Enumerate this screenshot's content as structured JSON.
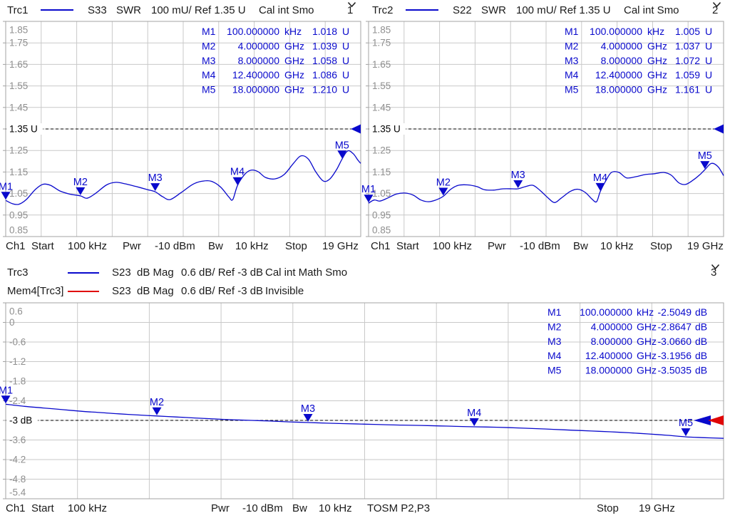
{
  "colors": {
    "trace_blue": "#0909cc",
    "mem_red": "#e00505",
    "grid": "#c9c9c9",
    "border": "#a3a3a3",
    "axis_label": "#8f8f8f",
    "ref_black": "#000000",
    "text": "#1b1b1b"
  },
  "traces_headers": [
    {
      "label": "Trc1",
      "meas": "S33",
      "format": "SWR",
      "scale": "100 mU/ Ref 1.35 U",
      "flags": "Cal int Smo",
      "channel": "1"
    },
    {
      "label": "Trc2",
      "meas": "S22",
      "format": "SWR",
      "scale": "100 mU/ Ref 1.35 U",
      "flags": "Cal int Smo",
      "channel": "2"
    },
    {
      "label": "Trc3",
      "meas": "S23",
      "format": "dB Mag",
      "scale": "0.6 dB/ Ref -3 dB",
      "flags": "Cal int Math Smo",
      "channel": "3"
    },
    {
      "label": "Mem4[Trc3]",
      "meas": "S23",
      "format": "dB Mag",
      "scale": "0.6 dB/ Ref -3 dB",
      "flags": "Invisible"
    }
  ],
  "footer_top": {
    "ch": "Ch1",
    "start_label": "Start",
    "start_value": "100 kHz",
    "pwr_label": "Pwr",
    "pwr_value": "-10 dBm",
    "bw_label": "Bw",
    "bw_value": "10 kHz",
    "stop_label": "Stop",
    "stop_value": "19 GHz"
  },
  "footer_bottom": {
    "ch": "Ch1",
    "start_label": "Start",
    "start_value": "100 kHz",
    "pwr_label": "Pwr",
    "pwr_value": "-10 dBm",
    "bw_label": "Bw",
    "bw_value": "10 kHz",
    "cal": "TOSM P2,P3",
    "stop_label": "Stop",
    "stop_value": "19 GHz"
  },
  "chart_data": [
    {
      "type": "line",
      "name": "trc1-s33-swr",
      "title": "Trc1 S33 SWR 100 mU/ Ref 1.35 U",
      "x_unit": "GHz",
      "x_min": 0,
      "x_max": 19,
      "y_axis": {
        "top": 1.85,
        "step": 0.1,
        "unit": "U",
        "ticks": [
          "1.85",
          "1.75",
          "1.65",
          "1.55",
          "1.45",
          "1.35 U",
          "1.25",
          "1.15",
          "1.05",
          "0.95",
          "0.85"
        ]
      },
      "ref": {
        "value": 1.35,
        "label": "1.35 U",
        "arrows": [
          "blue"
        ]
      },
      "markers": [
        {
          "name": "M1",
          "x": 0.0001,
          "y": 1.018,
          "freq": "100.000000",
          "funit": "kHz",
          "val": "1.018",
          "vunit": "U"
        },
        {
          "name": "M2",
          "x": 4,
          "y": 1.039,
          "freq": "4.000000",
          "funit": "GHz",
          "val": "1.039",
          "vunit": "U"
        },
        {
          "name": "M3",
          "x": 8,
          "y": 1.058,
          "freq": "8.000000",
          "funit": "GHz",
          "val": "1.058",
          "vunit": "U"
        },
        {
          "name": "M4",
          "x": 12.4,
          "y": 1.086,
          "freq": "12.400000",
          "funit": "GHz",
          "val": "1.086",
          "vunit": "U"
        },
        {
          "name": "M5",
          "x": 18,
          "y": 1.21,
          "freq": "18.000000",
          "funit": "GHz",
          "val": "1.210",
          "vunit": "U"
        }
      ],
      "trace": [
        [
          0,
          1.018
        ],
        [
          0.35,
          1.003
        ],
        [
          0.7,
          1.0
        ],
        [
          1.1,
          1.022
        ],
        [
          1.6,
          1.07
        ],
        [
          2.0,
          1.093
        ],
        [
          2.4,
          1.088
        ],
        [
          2.9,
          1.062
        ],
        [
          3.4,
          1.048
        ],
        [
          4.0,
          1.039
        ],
        [
          4.35,
          1.028
        ],
        [
          4.8,
          1.05
        ],
        [
          5.4,
          1.09
        ],
        [
          5.9,
          1.102
        ],
        [
          6.4,
          1.095
        ],
        [
          7.0,
          1.082
        ],
        [
          7.6,
          1.068
        ],
        [
          8.0,
          1.058
        ],
        [
          8.4,
          1.035
        ],
        [
          8.8,
          1.022
        ],
        [
          9.4,
          1.055
        ],
        [
          10.0,
          1.092
        ],
        [
          10.5,
          1.107
        ],
        [
          11.0,
          1.107
        ],
        [
          11.5,
          1.08
        ],
        [
          11.95,
          1.033
        ],
        [
          12.15,
          1.022
        ],
        [
          12.4,
          1.086
        ],
        [
          12.75,
          1.135
        ],
        [
          13.1,
          1.158
        ],
        [
          13.5,
          1.152
        ],
        [
          13.9,
          1.125
        ],
        [
          14.4,
          1.118
        ],
        [
          14.9,
          1.138
        ],
        [
          15.4,
          1.19
        ],
        [
          15.8,
          1.225
        ],
        [
          16.2,
          1.21
        ],
        [
          16.6,
          1.15
        ],
        [
          17.0,
          1.108
        ],
        [
          17.35,
          1.118
        ],
        [
          17.7,
          1.16
        ],
        [
          18.0,
          1.21
        ],
        [
          18.3,
          1.248
        ],
        [
          18.6,
          1.235
        ],
        [
          18.85,
          1.205
        ],
        [
          19,
          1.19
        ]
      ]
    },
    {
      "type": "line",
      "name": "trc2-s22-swr",
      "title": "Trc2 S22 SWR 100 mU/ Ref 1.35 U",
      "x_unit": "GHz",
      "x_min": 0,
      "x_max": 19,
      "y_axis": {
        "top": 1.85,
        "step": 0.1,
        "unit": "U",
        "ticks": [
          "1.85",
          "1.75",
          "1.65",
          "1.55",
          "1.45",
          "1.35 U",
          "1.25",
          "1.15",
          "1.05",
          "0.95",
          "0.85"
        ]
      },
      "ref": {
        "value": 1.35,
        "label": "1.35 U",
        "arrows": [
          "blue"
        ]
      },
      "markers": [
        {
          "name": "M1",
          "x": 0.0001,
          "y": 1.005,
          "freq": "100.000000",
          "funit": "kHz",
          "val": "1.005",
          "vunit": "U"
        },
        {
          "name": "M2",
          "x": 4,
          "y": 1.037,
          "freq": "4.000000",
          "funit": "GHz",
          "val": "1.037",
          "vunit": "U"
        },
        {
          "name": "M3",
          "x": 8,
          "y": 1.072,
          "freq": "8.000000",
          "funit": "GHz",
          "val": "1.072",
          "vunit": "U"
        },
        {
          "name": "M4",
          "x": 12.4,
          "y": 1.059,
          "freq": "12.400000",
          "funit": "GHz",
          "val": "1.059",
          "vunit": "U"
        },
        {
          "name": "M5",
          "x": 18,
          "y": 1.161,
          "freq": "18.000000",
          "funit": "GHz",
          "val": "1.161",
          "vunit": "U"
        }
      ],
      "trace": [
        [
          0,
          1.005
        ],
        [
          0.3,
          1.02
        ],
        [
          0.6,
          1.015
        ],
        [
          1.0,
          1.028
        ],
        [
          1.5,
          1.048
        ],
        [
          2.0,
          1.052
        ],
        [
          2.4,
          1.042
        ],
        [
          2.8,
          1.02
        ],
        [
          3.2,
          1.012
        ],
        [
          3.6,
          1.02
        ],
        [
          4.0,
          1.037
        ],
        [
          4.4,
          1.07
        ],
        [
          4.8,
          1.088
        ],
        [
          5.3,
          1.09
        ],
        [
          5.8,
          1.082
        ],
        [
          6.2,
          1.068
        ],
        [
          6.7,
          1.066
        ],
        [
          7.2,
          1.072
        ],
        [
          7.7,
          1.072
        ],
        [
          8.0,
          1.072
        ],
        [
          8.4,
          1.082
        ],
        [
          8.8,
          1.088
        ],
        [
          9.2,
          1.063
        ],
        [
          9.6,
          1.03
        ],
        [
          9.95,
          1.008
        ],
        [
          10.3,
          1.028
        ],
        [
          10.8,
          1.06
        ],
        [
          11.2,
          1.07
        ],
        [
          11.6,
          1.055
        ],
        [
          11.95,
          1.025
        ],
        [
          12.2,
          1.012
        ],
        [
          12.4,
          1.059
        ],
        [
          12.7,
          1.11
        ],
        [
          13.0,
          1.148
        ],
        [
          13.4,
          1.148
        ],
        [
          13.8,
          1.123
        ],
        [
          14.3,
          1.128
        ],
        [
          14.8,
          1.138
        ],
        [
          15.3,
          1.142
        ],
        [
          15.8,
          1.148
        ],
        [
          16.2,
          1.135
        ],
        [
          16.6,
          1.1
        ],
        [
          16.95,
          1.092
        ],
        [
          17.3,
          1.108
        ],
        [
          17.7,
          1.135
        ],
        [
          18.0,
          1.161
        ],
        [
          18.35,
          1.19
        ],
        [
          18.7,
          1.175
        ],
        [
          19,
          1.133
        ]
      ]
    },
    {
      "type": "line",
      "name": "trc3-s23-db-mag",
      "title": "Trc3 S23 dB Mag 0.6 dB/ Ref -3 dB",
      "x_unit": "GHz",
      "x_min": 0,
      "x_max": 19,
      "y_axis": {
        "top": 0.6,
        "step": 0.6,
        "unit": "dB",
        "ticks": [
          "0.6",
          "0",
          "-0.6",
          "-1.2",
          "-1.8",
          "-2.4",
          "-3 dB",
          "-3.6",
          "-4.2",
          "-4.8",
          "-5.4"
        ]
      },
      "ref": {
        "value": -3,
        "label": "-3 dB",
        "arrows": [
          "blue",
          "red"
        ]
      },
      "markers": [
        {
          "name": "M1",
          "x": 0.0001,
          "y": -2.5049,
          "freq": "100.000000",
          "funit": "kHz",
          "val": "-2.5049",
          "vunit": "dB"
        },
        {
          "name": "M2",
          "x": 4,
          "y": -2.8647,
          "freq": "4.000000",
          "funit": "GHz",
          "val": "-2.8647",
          "vunit": "dB"
        },
        {
          "name": "M3",
          "x": 8,
          "y": -3.066,
          "freq": "8.000000",
          "funit": "GHz",
          "val": "-3.0660",
          "vunit": "dB"
        },
        {
          "name": "M4",
          "x": 12.4,
          "y": -3.1956,
          "freq": "12.400000",
          "funit": "GHz",
          "val": "-3.1956",
          "vunit": "dB"
        },
        {
          "name": "M5",
          "x": 18,
          "y": -3.5035,
          "freq": "18.000000",
          "funit": "GHz",
          "val": "-3.5035",
          "vunit": "dB"
        }
      ],
      "trace": [
        [
          0,
          -2.505
        ],
        [
          0.5,
          -2.57
        ],
        [
          1,
          -2.62
        ],
        [
          1.5,
          -2.67
        ],
        [
          2,
          -2.72
        ],
        [
          2.5,
          -2.76
        ],
        [
          3,
          -2.8
        ],
        [
          3.5,
          -2.835
        ],
        [
          4,
          -2.865
        ],
        [
          4.5,
          -2.895
        ],
        [
          5,
          -2.925
        ],
        [
          5.5,
          -2.955
        ],
        [
          6,
          -2.98
        ],
        [
          6.5,
          -3.0
        ],
        [
          7,
          -3.02
        ],
        [
          7.5,
          -3.045
        ],
        [
          8,
          -3.066
        ],
        [
          8.5,
          -3.085
        ],
        [
          9,
          -3.1
        ],
        [
          9.5,
          -3.115
        ],
        [
          10,
          -3.13
        ],
        [
          10.5,
          -3.145
        ],
        [
          11,
          -3.155
        ],
        [
          11.5,
          -3.17
        ],
        [
          12,
          -3.185
        ],
        [
          12.4,
          -3.196
        ],
        [
          13,
          -3.21
        ],
        [
          13.5,
          -3.23
        ],
        [
          14,
          -3.25
        ],
        [
          14.5,
          -3.275
        ],
        [
          15,
          -3.3
        ],
        [
          15.5,
          -3.325
        ],
        [
          16,
          -3.35
        ],
        [
          16.5,
          -3.38
        ],
        [
          17,
          -3.415
        ],
        [
          17.5,
          -3.455
        ],
        [
          18,
          -3.5035
        ],
        [
          18.5,
          -3.53
        ],
        [
          19,
          -3.55
        ]
      ]
    }
  ]
}
